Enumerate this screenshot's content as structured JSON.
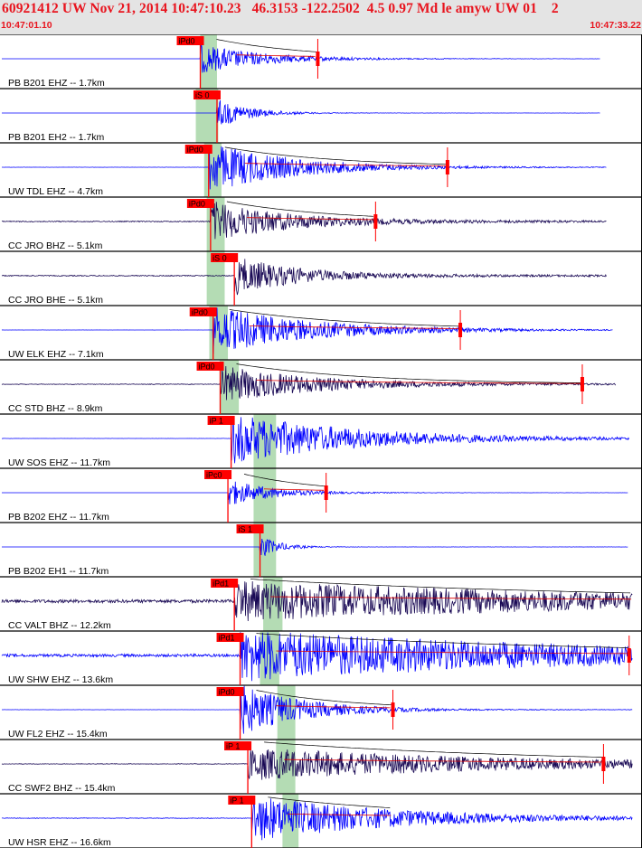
{
  "header": {
    "title": "60921412 UW Nov 21, 2014 10:47:10.23   46.3153 -122.2502  4.5 0.97 Md le amyw UW 01    2",
    "time_start": "10:47:01.10",
    "time_end": "10:47:33.22"
  },
  "colors": {
    "header_bg": "#e4e4e4",
    "header_text": "#e8141e",
    "trace_blue": "#0000ff",
    "trace_dark": "#1a0a55",
    "pick_box": "#ff0000",
    "window_green": "#b4dcb4",
    "coda_red": "#e00000"
  },
  "chart_data": {
    "type": "line",
    "title": "60921412 UW Nov 21, 2014 10:47:10.23   46.3153 -122.2502  4.5 0.97 Md le amyw UW 01    2",
    "x_axis": {
      "start": "10:47:01.10",
      "end": "10:47:33.22"
    },
    "grid": false,
    "series": [
      {
        "name": "PB B201 EHZ -- 1.7km",
        "pick": "iPd0",
        "color": "blue",
        "pick_t": 0.312,
        "green": [
          0.312,
          0.338
        ],
        "amp": 0.55,
        "decay": 0.1,
        "noise": 0.003,
        "end_t": 0.935,
        "coda": true,
        "coda_end": 0.495,
        "coda_mark": true
      },
      {
        "name": "PB B201 EH2 -- 1.7km",
        "pick": "iS 0",
        "color": "blue",
        "pick_t": 0.338,
        "green": [
          0.305,
          0.34
        ],
        "amp": 0.55,
        "decay": 0.05,
        "noise": 0.003,
        "end_t": 0.935,
        "coda": false,
        "coda_end": null,
        "coda_mark": false
      },
      {
        "name": "UW TDL EHZ -- 4.7km",
        "pick": "iPd0",
        "color": "blue",
        "pick_t": 0.325,
        "green": [
          0.318,
          0.345
        ],
        "amp": 0.95,
        "decay": 0.13,
        "noise": 0.006,
        "end_t": 0.945,
        "coda": true,
        "coda_end": 0.697,
        "coda_mark": true
      },
      {
        "name": "CC JRO BHZ -- 5.1km",
        "pick": "iPd0",
        "color": "dark",
        "pick_t": 0.328,
        "green": [
          0.322,
          0.35
        ],
        "amp": 0.75,
        "decay": 0.12,
        "noise": 0.035,
        "end_t": 0.945,
        "coda": true,
        "coda_end": 0.585,
        "coda_mark": true
      },
      {
        "name": "CC JRO BHE -- 5.1km",
        "pick": "iS 0",
        "color": "dark",
        "pick_t": 0.365,
        "green": [
          0.322,
          0.35
        ],
        "amp": 0.7,
        "decay": 0.1,
        "noise": 0.035,
        "end_t": 0.945,
        "coda": false,
        "coda_end": null,
        "coda_mark": false
      },
      {
        "name": "UW ELK EHZ -- 7.1km",
        "pick": "iPd0",
        "color": "blue",
        "pick_t": 0.332,
        "green": [
          0.326,
          0.355
        ],
        "amp": 0.9,
        "decay": 0.16,
        "noise": 0.004,
        "end_t": 0.955,
        "coda": true,
        "coda_end": 0.717,
        "coda_mark": true
      },
      {
        "name": "CC STD BHZ -- 8.9km",
        "pick": "iPd0",
        "color": "dark",
        "pick_t": 0.343,
        "green": [
          0.342,
          0.372
        ],
        "amp": 0.7,
        "decay": 0.15,
        "noise": 0.02,
        "end_t": 0.96,
        "coda": true,
        "coda_end": 0.907,
        "coda_mark": true
      },
      {
        "name": "UW SOS EHZ -- 11.7km",
        "pick": "iP 1",
        "color": "blue",
        "pick_t": 0.36,
        "green": [
          0.395,
          0.43
        ],
        "amp": 0.95,
        "decay": 0.2,
        "noise": 0.005,
        "end_t": 0.98,
        "coda": false,
        "coda_end": null,
        "coda_mark": false
      },
      {
        "name": "PB B202 EHZ -- 11.7km",
        "pick": "iPc0",
        "color": "blue",
        "pick_t": 0.355,
        "green": [
          0.395,
          0.43
        ],
        "amp": 0.5,
        "decay": 0.07,
        "noise": 0.003,
        "end_t": 0.978,
        "coda": true,
        "coda_end": 0.508,
        "coda_mark": true
      },
      {
        "name": "PB B202 EH1 -- 11.7km",
        "pick": "iS 1",
        "color": "blue",
        "pick_t": 0.405,
        "green": [
          0.395,
          0.43
        ],
        "amp": 0.45,
        "decay": 0.03,
        "noise": 0.003,
        "end_t": 0.978,
        "coda": false,
        "coda_end": null,
        "coda_mark": false
      },
      {
        "name": "CC VALT BHZ -- 12.2km",
        "pick": "iPd1",
        "color": "dark",
        "pick_t": 0.365,
        "green": [
          0.41,
          0.44
        ],
        "amp": 0.65,
        "decay": 0.55,
        "noise": 0.12,
        "end_t": 0.985,
        "coda": true,
        "coda_end": 0.985,
        "coda_mark": false
      },
      {
        "name": "UW SHW EHZ -- 13.6km",
        "pick": "iPd1",
        "color": "blue",
        "pick_t": 0.374,
        "green": [
          0.405,
          0.435
        ],
        "amp": 0.9,
        "decay": 0.5,
        "noise": 0.1,
        "end_t": 0.985,
        "coda": true,
        "coda_end": 0.98,
        "coda_mark": true
      },
      {
        "name": "UW FL2 EHZ -- 15.4km",
        "pick": "iPd0",
        "color": "blue",
        "pick_t": 0.374,
        "green": [
          0.432,
          0.46
        ],
        "amp": 0.95,
        "decay": 0.1,
        "noise": 0.006,
        "end_t": 0.985,
        "coda": true,
        "coda_end": 0.612,
        "coda_mark": true
      },
      {
        "name": "CC SWF2 BHZ -- 15.4km",
        "pick": "iP 1",
        "color": "dark",
        "pick_t": 0.386,
        "green": [
          0.43,
          0.46
        ],
        "amp": 0.6,
        "decay": 0.4,
        "noise": 0.02,
        "end_t": 0.985,
        "coda": true,
        "coda_end": 0.94,
        "coda_mark": true
      },
      {
        "name": "UW HSR EHZ -- 16.6km",
        "pick": "iP 1",
        "color": "blue",
        "pick_t": 0.392,
        "green": [
          0.44,
          0.465
        ],
        "amp": 0.85,
        "decay": 0.22,
        "noise": 0.02,
        "end_t": 0.985,
        "coda": true,
        "coda_end": 0.61,
        "coda_mark": false
      }
    ]
  }
}
